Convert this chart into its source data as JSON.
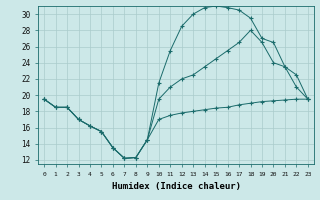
{
  "xlabel": "Humidex (Indice chaleur)",
  "bg_color": "#cce8e8",
  "line_color": "#1a6b6b",
  "grid_color": "#aacccc",
  "xlim": [
    -0.5,
    23.5
  ],
  "ylim": [
    11.5,
    31
  ],
  "yticks": [
    12,
    14,
    16,
    18,
    20,
    22,
    24,
    26,
    28,
    30
  ],
  "xticks": [
    0,
    1,
    2,
    3,
    4,
    5,
    6,
    7,
    8,
    9,
    10,
    11,
    12,
    13,
    14,
    15,
    16,
    17,
    18,
    19,
    20,
    21,
    22,
    23
  ],
  "line1_x": [
    0,
    1,
    2,
    3,
    4,
    5,
    6,
    7,
    8,
    9,
    10,
    11,
    12,
    13,
    14,
    15,
    16,
    17,
    18,
    19,
    20,
    21,
    22,
    23
  ],
  "line1_y": [
    19.5,
    18.5,
    18.5,
    17.0,
    16.2,
    15.5,
    13.5,
    12.2,
    12.3,
    14.5,
    17.0,
    17.5,
    17.8,
    18.0,
    18.2,
    18.4,
    18.5,
    18.8,
    19.0,
    19.2,
    19.3,
    19.4,
    19.5,
    19.5
  ],
  "line2_x": [
    0,
    1,
    2,
    3,
    4,
    5,
    6,
    7,
    8,
    9,
    10,
    11,
    12,
    13,
    14,
    15,
    16,
    17,
    18,
    19,
    20,
    21,
    22,
    23
  ],
  "line2_y": [
    19.5,
    18.5,
    18.5,
    17.0,
    16.2,
    15.5,
    13.5,
    12.2,
    12.3,
    14.5,
    19.5,
    21.0,
    22.0,
    22.5,
    23.5,
    24.5,
    25.5,
    26.5,
    28.0,
    26.5,
    24.0,
    23.5,
    22.5,
    19.5
  ],
  "line3_x": [
    0,
    1,
    2,
    3,
    4,
    5,
    6,
    7,
    8,
    9,
    10,
    11,
    12,
    13,
    14,
    15,
    16,
    17,
    18,
    19,
    20,
    21,
    22,
    23
  ],
  "line3_y": [
    19.5,
    18.5,
    18.5,
    17.0,
    16.2,
    15.5,
    13.5,
    12.2,
    12.3,
    14.5,
    21.5,
    25.5,
    28.5,
    30.0,
    30.8,
    31.0,
    30.8,
    30.5,
    29.5,
    27.0,
    26.5,
    23.5,
    21.0,
    19.5
  ]
}
